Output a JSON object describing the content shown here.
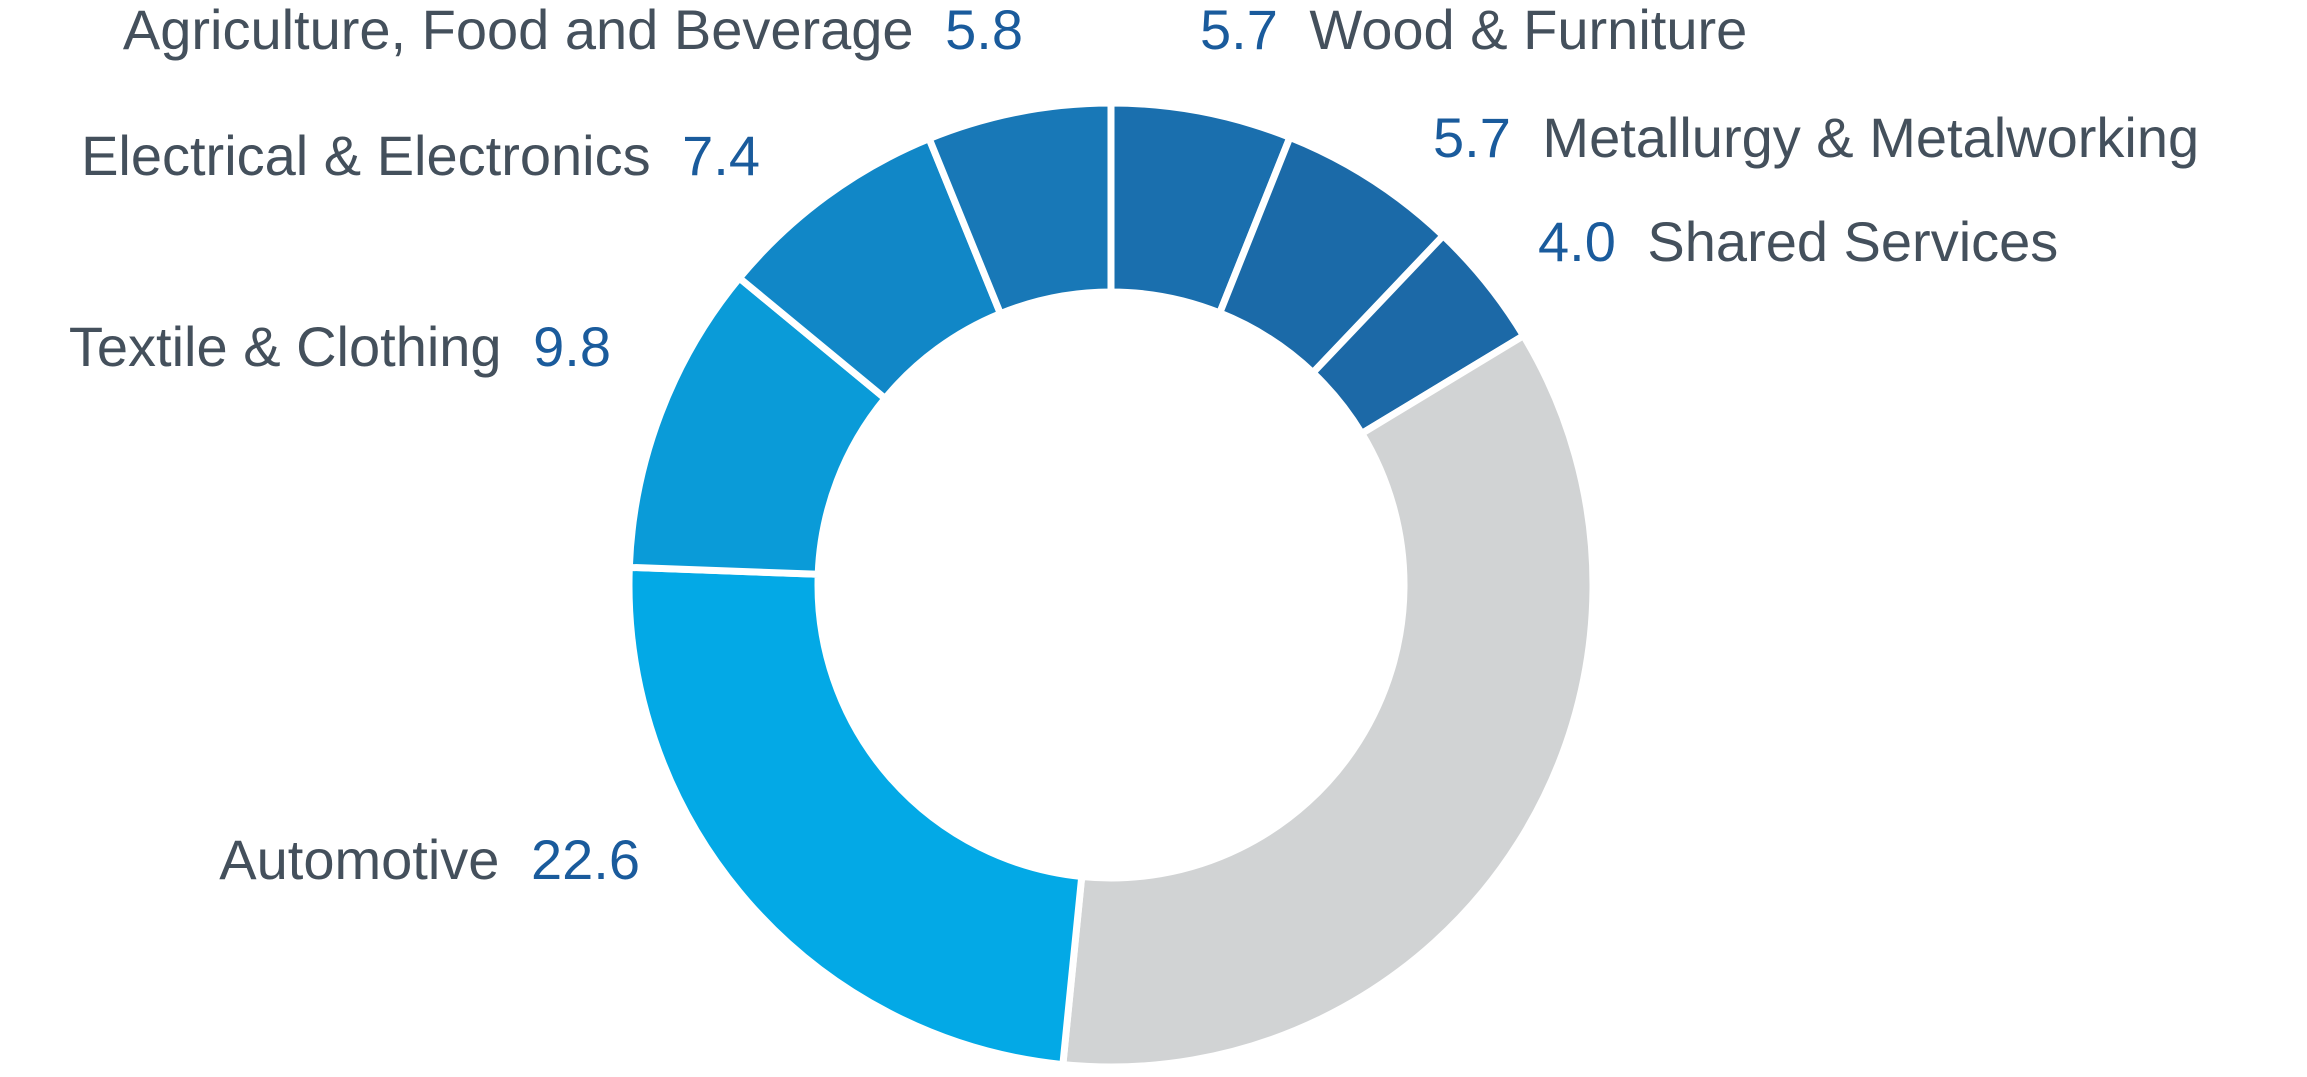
{
  "chart_data": {
    "type": "donut",
    "title": "",
    "series": [
      {
        "values": [
          {
            "label": "Wood & Furniture",
            "value": 5.7,
            "display": "5.7",
            "color": "#1a6fae"
          },
          {
            "label": "Metallurgy & Metalworking",
            "value": 5.7,
            "display": "5.7",
            "color": "#1b6aa8"
          },
          {
            "label": "Shared Services",
            "value": 4.0,
            "display": "4.0",
            "color": "#1c69a7"
          },
          {
            "label": "",
            "value": 33.2,
            "display": "",
            "color": "#d1d3d4"
          },
          {
            "label": "Automotive",
            "value": 22.6,
            "display": "22.6",
            "color": "#03a9e6"
          },
          {
            "label": "Textile & Clothing",
            "value": 9.8,
            "display": "9.8",
            "color": "#0a9bd8"
          },
          {
            "label": "Electrical & Electronics",
            "value": 7.4,
            "display": "7.4",
            "color": "#1187c7"
          },
          {
            "label": "Agriculture, Food and Beverage",
            "value": 5.8,
            "display": "5.8",
            "color": "#1878b7"
          }
        ]
      }
    ],
    "legend": "labels beside slices",
    "label_colors": {
      "category": "#44505c",
      "value": "#1a5b9c"
    }
  }
}
